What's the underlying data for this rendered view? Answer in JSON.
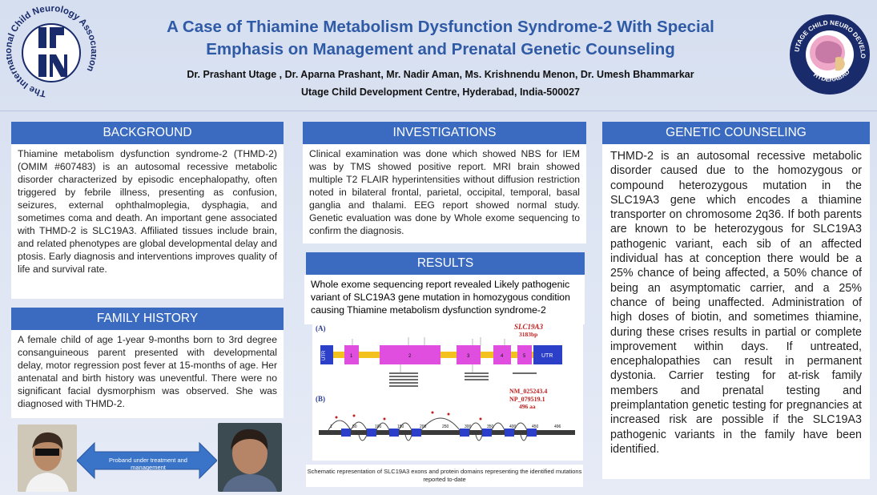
{
  "header": {
    "title_line1": "A Case of Thiamine Metabolism Dysfunction Syndrome-2 With Special",
    "title_line2": "Emphasis on Management and Prenatal Genetic Counseling",
    "authors": "Dr. Prashant Utage , Dr. Aparna Prashant, Mr. Nadir Aman, Ms. Krishnendu Menon, Dr. Umesh Bhammarkar",
    "affiliation": "Utage Child Development Centre, Hyderabad, India-500027",
    "logo_left_text": "The International Child Neurology Association",
    "logo_right_text": "UTAGE CHILD NEURO DEVELOPEMENT CENTRE",
    "logo_right_city": "HYDERABAD"
  },
  "background": {
    "heading": "BACKGROUND",
    "text": "Thiamine metabolism dysfunction syndrome-2 (THMD-2) (OMIM #607483) is an autosomal recessive metabolic disorder characterized by episodic encephalopathy, often triggered by febrile illness, presenting as confusion, seizures, external ophthalmoplegia, dysphagia, and sometimes coma and death. An important gene associated with THMD-2 is SLC19A3. Affiliated tissues include brain, and related phenotypes are global developmental delay and ptosis. Early diagnosis and interventions improves quality of life and survival rate."
  },
  "family_history": {
    "heading": "FAMILY HISTORY",
    "text": "A female child of age 1-year 9-months born to 3rd degree consanguineous parent presented with developmental delay, motor regression post fever at 15-months of age. Her antenatal and birth history was uneventful. There were no significant facial dysmorphism was observed. She was diagnosed with THMD-2."
  },
  "photos": {
    "arrow_label": "Proband under treatment and management"
  },
  "investigations": {
    "heading": "INVESTIGATIONS",
    "text": "Clinical examination was done which showed NBS for IEM was by TMS showed positive report. MRI brain showed multiple T2 FLAIR hyperintensities without diffusion restriction noted in bilateral frontal, parietal, occipital, temporal, basal ganglia and thalami. EEG report showed normal study. Genetic evaluation was done by Whole exome sequencing to confirm the diagnosis."
  },
  "results": {
    "heading": "RESULTS",
    "text": "Whole exome sequencing report revealed Likely pathogenic variant of SLC19A3 gene mutation in homozygous condition causing Thiamine metabolism dysfunction syndrome-2",
    "diagram": {
      "panel_a": "(A)",
      "panel_b": "(B)",
      "gene": "SLC19A3",
      "gene_bp": "3183bp",
      "utr_left": "UTR",
      "utr_right": "UTR",
      "exons": [
        "1",
        "2",
        "3",
        "4",
        "5"
      ],
      "transcript": "NM_025243.4",
      "protein": "NP_079519.1",
      "protein_len": "496 aa",
      "protein_ticks": [
        "1",
        "50",
        "100",
        "150",
        "200",
        "250",
        "300",
        "350",
        "400",
        "450",
        "496"
      ]
    },
    "caption": "Schematic representation of SLC19A3 exons and protein domains representing the identified mutations reported to-date"
  },
  "genetic_counseling": {
    "heading": "GENETIC COUNSELING",
    "text": "THMD-2 is an autosomal recessive metabolic disorder caused due to the homozygous or compound heterozygous mutation in the SLC19A3 gene which encodes a thiamine transporter on chromosome 2q36. If both parents are known to be heterozygous for SLC19A3 pathogenic variant, each sib of an affected individual has at conception there would be a 25% chance of being affected, a 50% chance of being an asymptomatic carrier, and a 25% chance of being unaffected. Administration of high doses of biotin, and sometimes thiamine, during these crises results in partial or complete improvement within days. If untreated, encephalopathies can result in permanent dystonia. Carrier testing for at-risk family members and prenatal testing and preimplantation genetic testing for pregnancies at increased risk are possible if the SLC19A3 pathogenic variants in the family have been identified."
  },
  "colors": {
    "accent": "#3a6bc0",
    "title": "#2f5aa6",
    "exon": "#e04ee0",
    "utr": "#2b3fc9",
    "intron": "#f4c21f"
  }
}
